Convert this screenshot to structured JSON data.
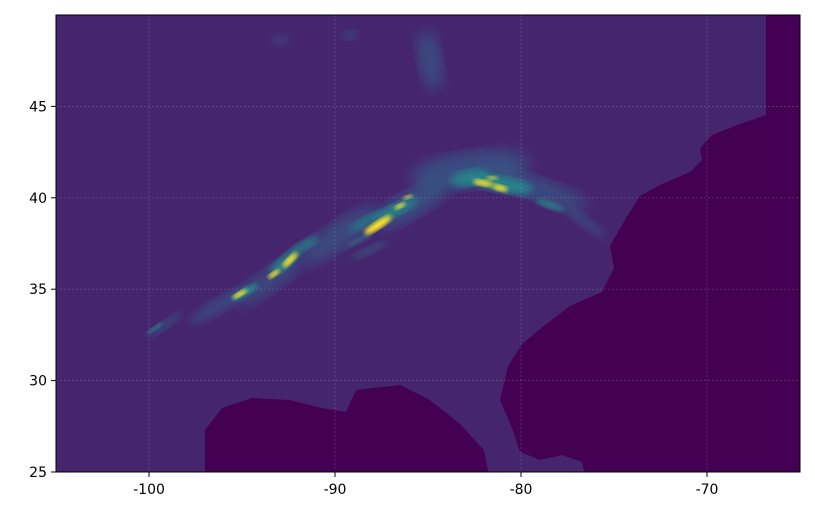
{
  "chart_data": {
    "type": "heatmap",
    "title": "",
    "xlabel": "",
    "ylabel": "",
    "xlim": [
      -105,
      -65
    ],
    "ylim": [
      25,
      50
    ],
    "xticks": [
      -100,
      -90,
      -80,
      -70
    ],
    "xtick_labels": [
      "-100",
      "-90",
      "-80",
      "-70"
    ],
    "yticks": [
      25,
      30,
      35,
      40,
      45
    ],
    "ytick_labels": [
      "25",
      "30",
      "35",
      "40",
      "45"
    ],
    "grid": true,
    "colormap": "viridis",
    "colors": {
      "ocean_masked": "#440154",
      "land_background": "#46256f",
      "low": "#31688e",
      "mid": "#21918c",
      "high": "#fde725"
    },
    "colorbar": false
  }
}
